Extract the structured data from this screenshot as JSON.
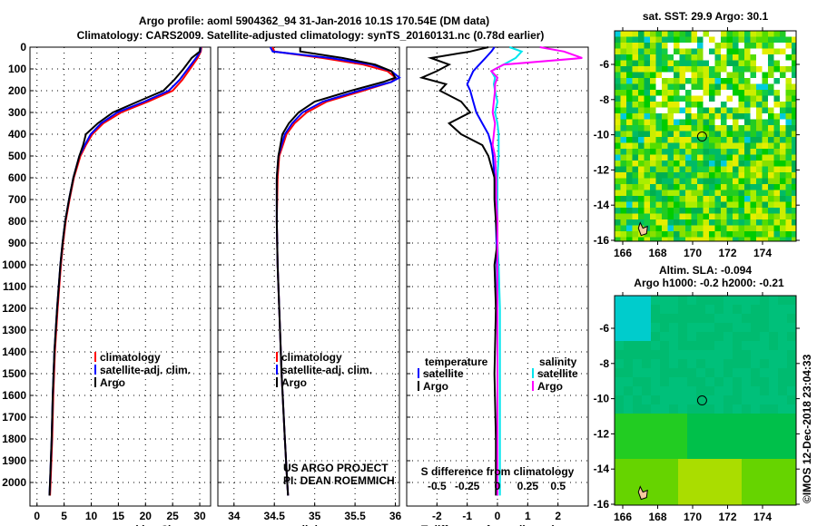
{
  "title_line1": "Argo profile: aoml 5904362_94 31-Jan-2016 10.1S 170.54E (DM data)",
  "title_line2": "Climatology: CARS2009. Satellite-adjusted climatology: synTS_20160131.nc (0.78d earlier)",
  "colors": {
    "climatology": "#ff0000",
    "satellite": "#0000ff",
    "argo": "#000000",
    "sal_satellite": "#00e5ee",
    "sal_argo": "#ff00ff"
  },
  "depth_ticks": [
    0,
    100,
    200,
    300,
    400,
    500,
    600,
    700,
    800,
    900,
    1000,
    1100,
    1200,
    1300,
    1400,
    1500,
    1600,
    1700,
    1800,
    1900,
    2000
  ],
  "credit_line1": "US ARGO PROJECT",
  "credit_line2": "PI: DEAN ROEMMICH",
  "timestamp": "©IMOS 12-Dec-2018 23:04:33",
  "chart_data": [
    {
      "type": "line",
      "name": "temperature",
      "xlabel": "temperature (deg C)",
      "xlim": [
        -1.3,
        32
      ],
      "ylim": [
        2100,
        0
      ],
      "xticks": [
        0,
        5,
        10,
        15,
        20,
        25,
        30
      ],
      "xtick_labels": [
        "0",
        "5",
        "10",
        "15",
        "20",
        "25",
        "30"
      ],
      "legend": [
        "climatology",
        "satellite-adj. clim.",
        "Argo"
      ],
      "depth": [
        0,
        20,
        50,
        100,
        150,
        200,
        250,
        300,
        350,
        400,
        450,
        500,
        600,
        700,
        800,
        900,
        1000,
        1200,
        1400,
        1600,
        1800,
        2000,
        2060
      ],
      "series": [
        {
          "name": "climatology",
          "color": "#ff0000",
          "values": [
            30.3,
            30.2,
            29.6,
            28.2,
            26.8,
            25.0,
            20.5,
            15.5,
            12.2,
            10.2,
            9.0,
            8.0,
            6.8,
            6.0,
            5.3,
            4.8,
            4.4,
            3.8,
            3.3,
            3.0,
            2.8,
            2.5,
            2.4
          ]
        },
        {
          "name": "satellite-adj. clim.",
          "color": "#0000ff",
          "values": [
            30.2,
            30.1,
            29.3,
            27.8,
            26.3,
            24.3,
            19.8,
            14.8,
            11.8,
            9.9,
            8.8,
            7.8,
            6.7,
            5.9,
            5.2,
            4.7,
            4.3,
            3.7,
            3.2,
            2.9,
            2.7,
            2.4,
            2.3
          ]
        },
        {
          "name": "Argo",
          "color": "#000000",
          "values": [
            30.1,
            30.0,
            28.5,
            27.0,
            25.3,
            23.3,
            18.6,
            14.0,
            11.2,
            9.0,
            8.5,
            7.8,
            6.7,
            5.9,
            5.2,
            4.7,
            4.3,
            3.7,
            3.2,
            2.9,
            2.7,
            2.4,
            2.3
          ]
        }
      ]
    },
    {
      "type": "line",
      "name": "salinity",
      "xlabel": "salinity",
      "xlim": [
        33.8,
        36.05
      ],
      "ylim": [
        2100,
        0
      ],
      "xticks": [
        34,
        34.5,
        35,
        35.5,
        36
      ],
      "xtick_labels": [
        "34",
        "34.5",
        "35",
        "35.5",
        "36"
      ],
      "legend": [
        "climatology",
        "satellite-adj. clim.",
        "Argo"
      ],
      "depth": [
        0,
        20,
        50,
        80,
        110,
        140,
        160,
        200,
        250,
        300,
        350,
        400,
        500,
        600,
        800,
        1000,
        1200,
        1500,
        1800,
        2000,
        2060
      ],
      "series": [
        {
          "name": "climatology",
          "color": "#ff0000",
          "values": [
            34.48,
            34.5,
            35.1,
            35.6,
            35.9,
            36.0,
            35.95,
            35.6,
            35.15,
            34.9,
            34.75,
            34.65,
            34.56,
            34.54,
            34.53,
            34.54,
            34.56,
            34.59,
            34.63,
            34.66,
            34.67
          ]
        },
        {
          "name": "satellite-adj. clim.",
          "color": "#0000ff",
          "values": [
            34.45,
            34.48,
            35.2,
            35.7,
            35.95,
            36.05,
            35.95,
            35.55,
            35.1,
            34.85,
            34.72,
            34.63,
            34.55,
            34.53,
            34.53,
            34.54,
            34.56,
            34.59,
            34.63,
            34.66,
            34.67
          ]
        },
        {
          "name": "Argo",
          "color": "#000000",
          "values": [
            34.82,
            34.82,
            35.35,
            35.75,
            35.95,
            36.0,
            35.85,
            35.45,
            35.0,
            34.8,
            34.68,
            34.6,
            34.55,
            34.53,
            34.53,
            34.54,
            34.56,
            34.59,
            34.63,
            34.66,
            34.67
          ]
        }
      ]
    },
    {
      "type": "line",
      "name": "difference",
      "xlabel": "T difference from climatology",
      "xlim": [
        -3,
        3
      ],
      "ylim": [
        2100,
        0
      ],
      "xticks": [
        -2,
        -1,
        0,
        1,
        2
      ],
      "xtick_labels": [
        "-2",
        "-1",
        "0",
        "1",
        "2"
      ],
      "s_label": "S difference from climatology",
      "s_xlim": [
        -0.75,
        0.75
      ],
      "s_xticks": [
        -0.5,
        -0.25,
        0,
        0.25,
        0.5
      ],
      "s_xtick_labels": [
        "-0.5",
        "-0.25",
        "0",
        "0.25",
        "0.5"
      ],
      "legend_temperature_title": "temperature",
      "legend_salinity_title": "salinity",
      "legend": [
        "satellite",
        "Argo",
        "satellite",
        "Argo"
      ],
      "depth": [
        0,
        20,
        50,
        80,
        110,
        140,
        170,
        200,
        250,
        300,
        350,
        400,
        450,
        500,
        600,
        700,
        800,
        900,
        1000,
        1200,
        1500,
        1800,
        2000,
        2060
      ],
      "series": [
        {
          "name": "temperature satellite",
          "kind": "T",
          "color": "#0000ff",
          "values": [
            -0.1,
            -0.2,
            -0.4,
            -0.6,
            -0.8,
            -0.9,
            -1.0,
            -0.9,
            -0.8,
            -0.7,
            -0.5,
            -0.3,
            -0.2,
            -0.15,
            -0.1,
            -0.05,
            -0.05,
            -0.03,
            -0.02,
            0,
            0,
            0,
            0,
            0
          ]
        },
        {
          "name": "temperature Argo",
          "kind": "T",
          "color": "#000000",
          "values": [
            -0.3,
            -0.9,
            -2.2,
            -1.6,
            -2.0,
            -2.5,
            -1.7,
            -1.9,
            -1.2,
            -0.9,
            -1.6,
            -1.2,
            -0.5,
            -0.3,
            -0.1,
            -0.1,
            -0.05,
            0.0,
            -0.1,
            -0.05,
            -0.1,
            -0.05,
            -0.05,
            -0.05
          ]
        },
        {
          "name": "salinity satellite",
          "kind": "S",
          "color": "#00e5ee",
          "values": [
            0.1,
            0.2,
            0.15,
            0.05,
            -0.05,
            -0.02,
            -0.03,
            -0.02,
            0.0,
            -0.02,
            0.0,
            0.01,
            0.01,
            0.01,
            0.0,
            0.0,
            0.0,
            0.0,
            0.01,
            0.02,
            0.02,
            0.02,
            0.02,
            0.02
          ]
        },
        {
          "name": "salinity Argo",
          "kind": "S",
          "color": "#ff00ff",
          "values": [
            0.35,
            0.55,
            0.7,
            0.05,
            -0.05,
            0.0,
            -0.02,
            -0.02,
            -0.03,
            -0.04,
            -0.02,
            -0.03,
            -0.04,
            -0.02,
            -0.01,
            -0.01,
            0.0,
            0.0,
            0.0,
            0.0,
            0.0,
            0.0,
            0.0,
            0.0
          ]
        }
      ]
    }
  ],
  "maps": [
    {
      "title_line1": "sat. SST: 29.9 Argo: 30.1",
      "title_line2": "",
      "kind": "sst"
    },
    {
      "title_line1": "Altim. SLA: -0.094",
      "title_line2": "Argo h1000: -0.2 h2000: -0.21",
      "kind": "sla"
    }
  ],
  "map_lon_ticks": [
    "166",
    "168",
    "170",
    "172",
    "174"
  ],
  "map_lat_ticks": [
    "-6",
    "-8",
    "-10",
    "-12",
    "-14",
    "-16"
  ],
  "float_position": {
    "lon": 170.54,
    "lat": -10.1
  }
}
